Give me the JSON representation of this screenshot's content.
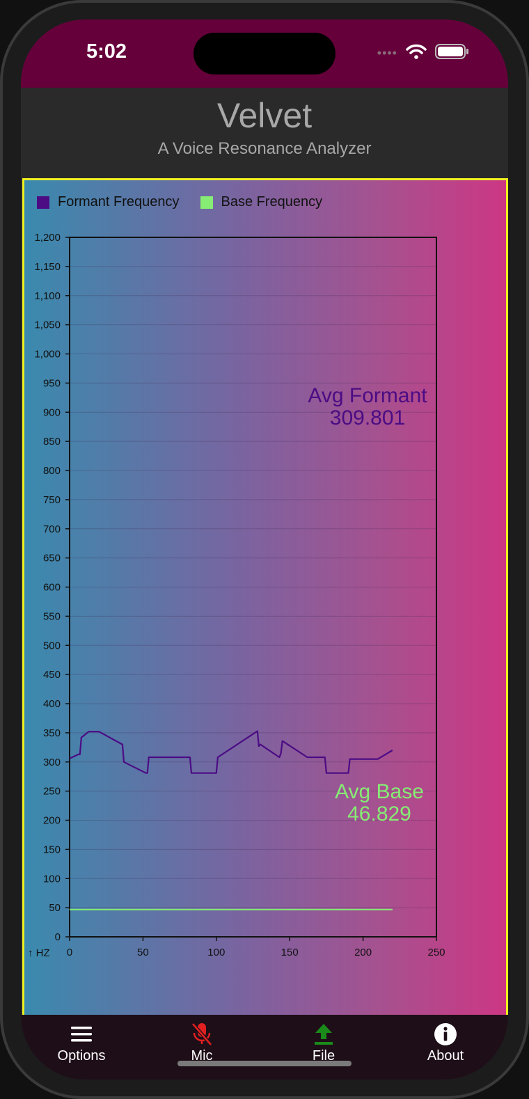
{
  "status": {
    "time": "5:02",
    "dots": "••••"
  },
  "header": {
    "title": "Velvet",
    "subtitle": "A Voice Resonance Analyzer"
  },
  "legend": [
    {
      "label": "Formant Frequency",
      "color": "#4b0c84"
    },
    {
      "label": "Base Frequency",
      "color": "#86ec74"
    }
  ],
  "annotations": {
    "avg_formant_label": "Avg Formant",
    "avg_formant_value": "309.801",
    "avg_base_label": "Avg Base",
    "avg_base_value": "46.829"
  },
  "y_unit_label": "↑ HZ",
  "chart_data": {
    "type": "line",
    "xlim": [
      0,
      250
    ],
    "ylim": [
      0,
      1200
    ],
    "x_ticks": [
      0,
      50,
      100,
      150,
      200,
      250
    ],
    "y_ticks": [
      0,
      50,
      100,
      150,
      200,
      250,
      300,
      350,
      400,
      450,
      500,
      550,
      600,
      650,
      700,
      750,
      800,
      850,
      900,
      950,
      1000,
      1050,
      1100,
      1150,
      1200
    ],
    "y_tick_labels": [
      "0",
      "50",
      "100",
      "150",
      "200",
      "250",
      "300",
      "350",
      "400",
      "450",
      "500",
      "550",
      "600",
      "650",
      "700",
      "750",
      "800",
      "850",
      "900",
      "950",
      "1,000",
      "1,050",
      "1,100",
      "1,150",
      "1,200"
    ],
    "grid": true,
    "series": [
      {
        "name": "Formant Frequency",
        "color": "#4b0c84",
        "x": [
          0,
          6,
          7,
          8,
          13,
          20,
          36,
          37,
          52,
          53,
          54,
          82,
          83,
          85,
          99,
          100,
          101,
          128,
          129,
          130,
          143,
          144,
          145,
          162,
          174,
          175,
          177,
          190,
          191,
          192,
          210,
          220
        ],
        "y": [
          306,
          313,
          313,
          342,
          352,
          352,
          330,
          300,
          281,
          281,
          308,
          308,
          281,
          281,
          281,
          281,
          308,
          353,
          327,
          330,
          308,
          315,
          336,
          308,
          308,
          281,
          281,
          281,
          305,
          305,
          305,
          320
        ]
      },
      {
        "name": "Base Frequency",
        "color": "#86ec74",
        "x": [
          0,
          220
        ],
        "y": [
          46.8,
          46.8
        ]
      }
    ]
  },
  "tabs": [
    {
      "label": "Options",
      "icon": "menu-icon",
      "color": "#ffffff"
    },
    {
      "label": "Mic",
      "icon": "mic-off-icon",
      "color": "#e02020"
    },
    {
      "label": "File",
      "icon": "upload-icon",
      "color": "#1a8a1a"
    },
    {
      "label": "About",
      "icon": "info-icon",
      "color": "#ffffff"
    }
  ]
}
